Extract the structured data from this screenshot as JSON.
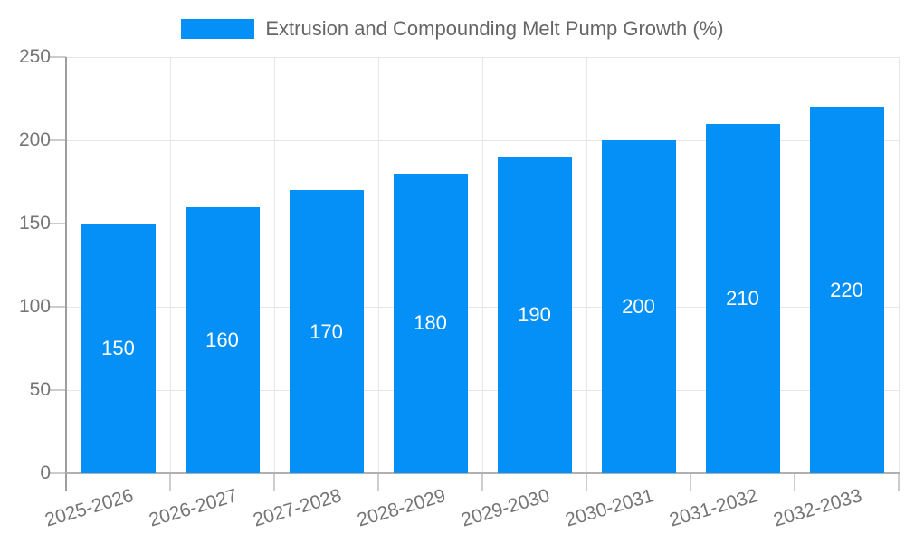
{
  "legend": {
    "label": "Extrusion and Compounding Melt Pump Growth (%)"
  },
  "colors": {
    "bar": "#0590f8",
    "grid": "#e6e6e6",
    "axis": "#9e9e9e",
    "baseline": "#b0b0b0",
    "tick": "#cccccc",
    "axis_text": "#757575",
    "legend_text": "#666666",
    "bar_label_text": "#ffffff",
    "background": "#ffffff"
  },
  "chart_data": {
    "type": "bar",
    "title": "Extrusion and Compounding Melt Pump Growth (%)",
    "categories": [
      "2025-2026",
      "2026-2027",
      "2027-2028",
      "2028-2029",
      "2029-2030",
      "2030-2031",
      "2031-2032",
      "2032-2033"
    ],
    "values": [
      150,
      160,
      170,
      180,
      190,
      200,
      210,
      220
    ],
    "xlabel": "",
    "ylabel": "",
    "ylim": [
      0,
      250
    ],
    "yticks": [
      0,
      50,
      100,
      150,
      200,
      250
    ],
    "grid": "horizontal-and-vertical",
    "legend_position": "top-center",
    "bar_label_position": "inside-center",
    "x_tick_rotation_deg": -16.5
  }
}
